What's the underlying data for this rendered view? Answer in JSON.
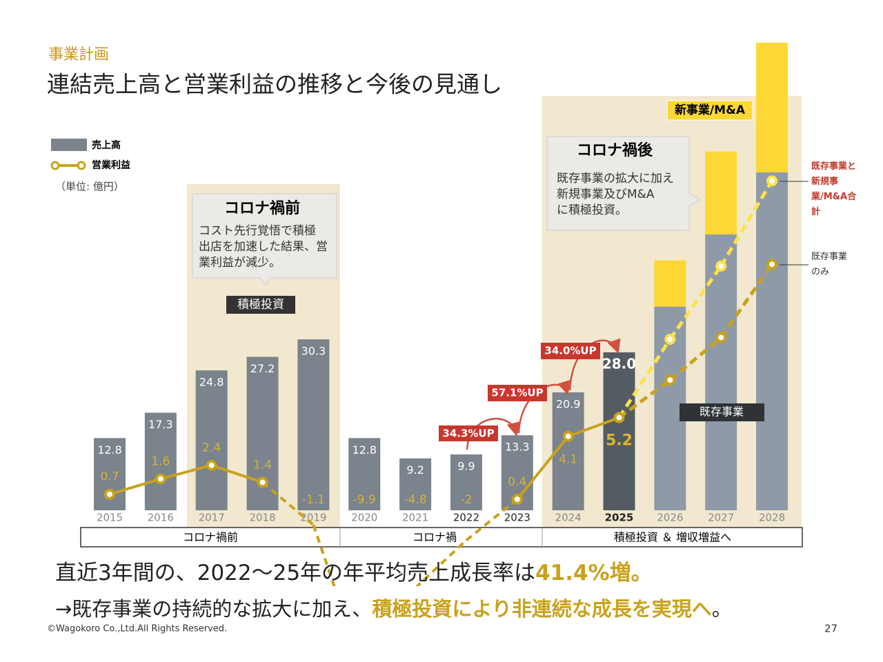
{
  "header": {
    "category": "事業計画",
    "title": "連結売上高と営業利益の推移と今後の見通し"
  },
  "chart_data": {
    "type": "bar-line",
    "unit": "（単位: 億円）",
    "categories": [
      "2015",
      "2016",
      "2017",
      "2018",
      "2019",
      "2020",
      "2021",
      "2022",
      "2023",
      "2024",
      "2025",
      "2026",
      "2027",
      "2028"
    ],
    "ylim": [
      0,
      83
    ],
    "y2lim": [
      -5,
      25
    ],
    "series": [
      {
        "name": "売上高",
        "colors": [
          "#7b838c",
          "#7b838c",
          "#7b838c",
          "#7b838c",
          "#7b838c",
          "#7b838c",
          "#7b838c",
          "#7b838c",
          "#7b838c",
          "#7b838c",
          "#545b63",
          "#8f9aa8",
          "#8f9aa8",
          "#8f9aa8"
        ],
        "values": [
          12.8,
          17.3,
          24.8,
          27.2,
          30.3,
          12.8,
          9.2,
          9.9,
          13.3,
          20.9,
          28.0,
          36.1,
          48.9,
          59.9
        ],
        "value_labels": [
          "12.8",
          "17.3",
          "24.8",
          "27.2",
          "30.3",
          "12.8",
          "9.2",
          "9.9",
          "13.3",
          "20.9",
          "28.0",
          null,
          null,
          null
        ]
      },
      {
        "name": "新事業/M&A",
        "color": "#fdd835",
        "values": [
          null,
          null,
          null,
          null,
          null,
          null,
          null,
          null,
          null,
          null,
          null,
          8.2,
          14.7,
          23.0
        ]
      },
      {
        "name": "営業利益",
        "color": "#c9a21c",
        "axis": "y2",
        "values": [
          0.7,
          1.6,
          2.4,
          1.4,
          -1.1,
          -9.9,
          -4.8,
          -2.0,
          0.4,
          4.1,
          5.2,
          null,
          null,
          null
        ]
      },
      {
        "name": "既存事業と新規事業/M&A合計",
        "color": "#fde24a",
        "axis": "y2",
        "values": [
          null,
          null,
          null,
          null,
          null,
          null,
          null,
          null,
          null,
          null,
          null,
          9.8,
          14.1,
          19.1
        ]
      },
      {
        "name": "既存事業のみ",
        "color": "#c9a21c",
        "axis": "y2",
        "values": [
          null,
          null,
          null,
          null,
          null,
          null,
          null,
          null,
          null,
          null,
          null,
          7.4,
          9.9,
          14.2
        ]
      }
    ],
    "annotations": {
      "before": {
        "title": "コロナ禍前",
        "lines": [
          "コスト先行覚悟で積極",
          "出店を加速した結果、営",
          "業利益が減少。"
        ]
      },
      "after": {
        "title": "コロナ禍後",
        "lines": [
          "既存事業の拡大に加え",
          "新規事業及びM&A",
          "に積極投資。"
        ]
      },
      "invest_tag": "積極投資",
      "existing_tag": "既存事業",
      "growth": [
        "34.3%UP",
        "57.1%UP",
        "34.0%UP"
      ],
      "periods": [
        "コロナ禍前",
        "コロナ禍",
        "積極投資 ＆ 増収増益へ"
      ]
    }
  },
  "summary": {
    "line1": [
      "直近3年間の、2022〜25年の年平均売上成長率は",
      "41.4%増。"
    ],
    "line2": [
      "→既存事業の持続的な拡大に加え、",
      "積極投資により非連続な成長を実現へ",
      "。"
    ]
  },
  "footer": {
    "copyright": "©Wagokoro Co.,Ltd.All Rights Reserved.",
    "page": "27"
  }
}
